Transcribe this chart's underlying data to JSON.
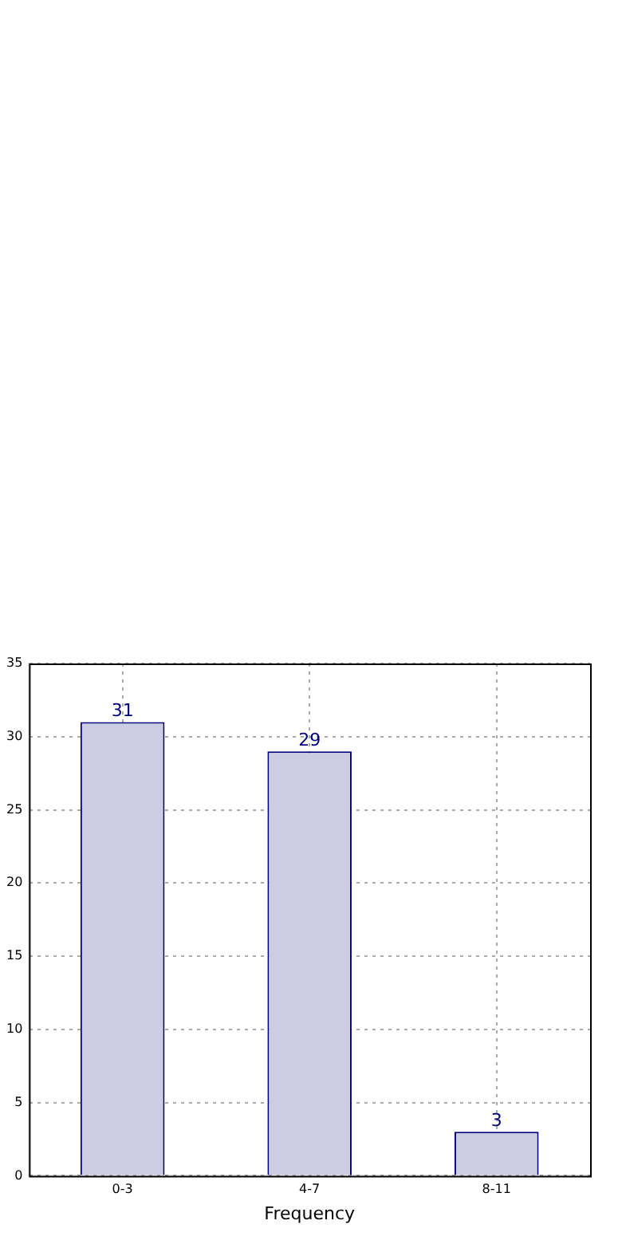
{
  "chart_data": {
    "type": "bar",
    "xlabel": "Frequency",
    "categories": [
      "0-3",
      "4-7",
      "8-11"
    ],
    "values": [
      31,
      29,
      3
    ],
    "color": "#cccce4",
    "ylim": [
      0,
      35
    ],
    "yticks": [
      0,
      5,
      10,
      15,
      20,
      25,
      30,
      35
    ],
    "grid": true,
    "data_labels": true,
    "legend": false
  }
}
